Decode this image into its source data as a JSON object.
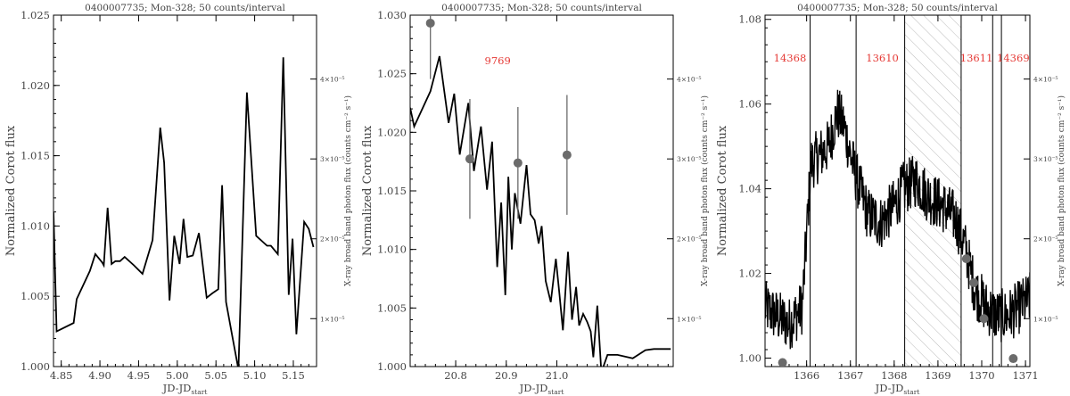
{
  "chart_data": [
    {
      "type": "line",
      "title": "0400007735; Mon-328; 50 counts/interval",
      "xlabel": "JD-JD",
      "xlabel_sub": "start",
      "ylabel": "Normalized Corot flux",
      "ylabel_right": "X-ray broad band photon flux (counts cm⁻² s⁻¹)",
      "xlim": [
        4.84,
        5.18
      ],
      "ylim": [
        1.0,
        1.025
      ],
      "xticks": [
        4.85,
        4.9,
        4.95,
        5.0,
        5.05,
        5.1,
        5.15
      ],
      "xtick_labels": [
        "4.85",
        "4.90",
        "4.95",
        "5.00",
        "5.05",
        "5.10",
        "5.15"
      ],
      "yticks": [
        1.0,
        1.005,
        1.01,
        1.015,
        1.02,
        1.025
      ],
      "ytick_labels": [
        "1.000",
        "1.005",
        "1.010",
        "1.015",
        "1.020",
        "1.025"
      ],
      "y2lim": [
        4e-06,
        4.8e-05
      ],
      "y2ticks": [
        1e-05,
        2e-05,
        3e-05,
        4e-05
      ],
      "y2tick_labels": [
        "1×10⁻⁵",
        "2×10⁻⁵",
        "3×10⁻⁵",
        "4×10⁻⁵"
      ],
      "series": [
        {
          "kind": "line",
          "x": [
            4.84,
            4.844,
            4.866,
            4.87,
            4.887,
            4.894,
            4.9,
            4.903,
            4.905,
            4.91,
            4.915,
            4.92,
            4.926,
            4.932,
            4.944,
            4.955,
            4.968,
            4.978,
            4.983,
            4.99,
            4.996,
            5.003,
            5.008,
            5.013,
            5.02,
            5.028,
            5.038,
            5.045,
            5.053,
            5.058,
            5.063,
            5.071,
            5.079,
            5.09,
            5.102,
            5.116,
            5.121,
            5.13,
            5.137,
            5.144,
            5.149,
            5.154,
            5.164,
            5.17,
            5.176
          ],
          "y": [
            1.011,
            1.0025,
            1.0031,
            1.0048,
            1.0068,
            1.008,
            1.0076,
            1.0074,
            1.0072,
            1.0113,
            1.0073,
            1.0075,
            1.0075,
            1.0078,
            1.0072,
            1.0066,
            1.009,
            1.017,
            1.0145,
            1.0047,
            1.0093,
            1.0073,
            1.0105,
            1.0078,
            1.0079,
            1.0095,
            1.0049,
            1.0052,
            1.0055,
            1.0129,
            1.0046,
            1.0022,
            0.9998,
            1.0195,
            1.0093,
            1.0086,
            1.0086,
            1.008,
            1.022,
            1.0051,
            1.0091,
            1.0023,
            1.0103,
            1.0098,
            1.0085
          ]
        }
      ],
      "labels": []
    },
    {
      "type": "line",
      "title": "0400007735; Mon-328; 50 counts/interval",
      "xlabel": "JD-JD",
      "xlabel_sub": "start",
      "ylabel": "Normalized Corot flux",
      "ylabel_right": "X-ray broad band photon flux (counts cm⁻² s⁻¹)",
      "xlim": [
        20.71,
        21.23
      ],
      "ylim": [
        1.0,
        1.03
      ],
      "xticks": [
        20.8,
        20.9,
        21.0
      ],
      "xtick_labels": [
        "20.8",
        "20.9",
        "21.0"
      ],
      "yticks": [
        1.0,
        1.005,
        1.01,
        1.015,
        1.02,
        1.025,
        1.03
      ],
      "ytick_labels": [
        "1.000",
        "1.005",
        "1.010",
        "1.015",
        "1.020",
        "1.025",
        "1.030"
      ],
      "y2lim": [
        4e-06,
        4.8e-05
      ],
      "y2ticks": [
        1e-05,
        2e-05,
        3e-05,
        4e-05
      ],
      "y2tick_labels": [
        "1×10⁻⁵",
        "2×10⁻⁵",
        "3×10⁻⁵",
        "4×10⁻⁵"
      ],
      "series": [
        {
          "kind": "line",
          "x": [
            20.71,
            20.718,
            20.75,
            20.768,
            20.786,
            20.797,
            20.808,
            20.825,
            20.836,
            20.85,
            20.862,
            20.872,
            20.882,
            20.89,
            20.898,
            20.904,
            20.911,
            20.917,
            20.928,
            20.94,
            20.948,
            20.956,
            20.964,
            20.97,
            20.978,
            20.988,
            20.998,
            21.005,
            21.012,
            21.022,
            21.03,
            21.038,
            21.044,
            21.052,
            21.06,
            21.067,
            21.072,
            21.08,
            21.088,
            21.1,
            21.12,
            21.15,
            21.175,
            21.192,
            21.21,
            21.225
          ],
          "y": [
            1.0221,
            1.0205,
            1.0235,
            1.0265,
            1.0208,
            1.0233,
            1.0181,
            1.0225,
            1.0167,
            1.0205,
            1.0151,
            1.0192,
            1.0085,
            1.014,
            1.0061,
            1.0162,
            1.01,
            1.0148,
            1.0122,
            1.0172,
            1.013,
            1.0125,
            1.0105,
            1.012,
            1.0073,
            1.0055,
            1.0092,
            1.0062,
            1.0031,
            1.0098,
            1.004,
            1.0068,
            1.0035,
            1.0045,
            1.0038,
            1.003,
            1.0008,
            1.0052,
            0.9995,
            1.001,
            1.001,
            1.0007,
            1.0014,
            1.0015,
            1.0015,
            1.0015
          ]
        },
        {
          "kind": "points",
          "axis": "right",
          "x": [
            20.75,
            20.828,
            20.923,
            21.02
          ],
          "y": [
            4.7e-05,
            3e-05,
            2.95e-05,
            3.05e-05
          ],
          "yerr": [
            7e-06,
            7.5e-06,
            7e-06,
            7.5e-06
          ]
        }
      ],
      "labels": [
        {
          "text": "9769",
          "x": 20.883,
          "y": 1.0258
        }
      ]
    },
    {
      "type": "line",
      "title": "0400007735; Mon-328; 50 counts/interval",
      "xlabel": "JD-JD",
      "xlabel_sub": "start",
      "ylabel": "Normalized Corot flux",
      "ylabel_right": "X-ray broad band photon flux (counts cm⁻² s⁻¹)",
      "xlim": [
        1365.05,
        1371.1
      ],
      "ylim": [
        0.998,
        1.081
      ],
      "xticks": [
        1366,
        1367,
        1368,
        1369,
        1370,
        1371
      ],
      "xtick_labels": [
        "1366",
        "1367",
        "1368",
        "1369",
        "1370",
        "1371"
      ],
      "yticks": [
        1.0,
        1.02,
        1.04,
        1.06,
        1.08
      ],
      "ytick_labels": [
        "1.00",
        "1.02",
        "1.04",
        "1.06",
        "1.08"
      ],
      "y2lim": [
        4e-06,
        4.8e-05
      ],
      "y2ticks": [
        1e-05,
        2e-05,
        3e-05,
        4e-05
      ],
      "y2tick_labels": [
        "1×10⁻⁵",
        "2×10⁻⁵",
        "3×10⁻⁵",
        "4×10⁻⁵"
      ],
      "vlines": [
        1366.08,
        1367.13,
        1368.24,
        1369.53,
        1370.25,
        1370.45
      ],
      "hatched_region": [
        1368.24,
        1369.53
      ],
      "series": [
        {
          "kind": "noisy-line",
          "x": [
            1365.05,
            1365.3,
            1365.6,
            1365.9,
            1366.1,
            1366.3,
            1366.5,
            1366.7,
            1366.85,
            1367.0,
            1367.15,
            1367.4,
            1367.7,
            1368.0,
            1368.2,
            1368.5,
            1368.8,
            1369.1,
            1369.4,
            1369.6,
            1369.85,
            1370.1,
            1370.35,
            1370.6,
            1370.85,
            1371.1
          ],
          "y": [
            1.012,
            1.01,
            1.008,
            1.012,
            1.046,
            1.048,
            1.05,
            1.058,
            1.055,
            1.048,
            1.042,
            1.034,
            1.032,
            1.036,
            1.04,
            1.042,
            1.038,
            1.036,
            1.033,
            1.027,
            1.016,
            1.012,
            1.01,
            1.01,
            1.012,
            1.014
          ],
          "noise": 0.0065
        },
        {
          "kind": "points",
          "axis": "right",
          "x": [
            1365.45,
            1367.75,
            1369.65,
            1369.82,
            1370.05,
            1370.72
          ],
          "y": [
            4.5e-06,
            3.5e-06,
            1.75e-05,
            1.45e-05,
            1e-05,
            5e-06
          ],
          "yerr": [
            0,
            0,
            0,
            0,
            0,
            0
          ]
        }
      ],
      "labels": [
        {
          "text": "14368",
          "x": 1365.62,
          "y": 1.07
        },
        {
          "text": "13610",
          "x": 1367.73,
          "y": 1.07
        },
        {
          "text": "13611",
          "x": 1369.88,
          "y": 1.07
        },
        {
          "text": "14369",
          "x": 1370.72,
          "y": 1.07
        }
      ]
    }
  ],
  "colors": {
    "line": "#000000",
    "axis": "#000000",
    "points": "#6b6b6b",
    "label": "#e53935",
    "hatch": "#bbbbbb",
    "text": "#444444"
  }
}
